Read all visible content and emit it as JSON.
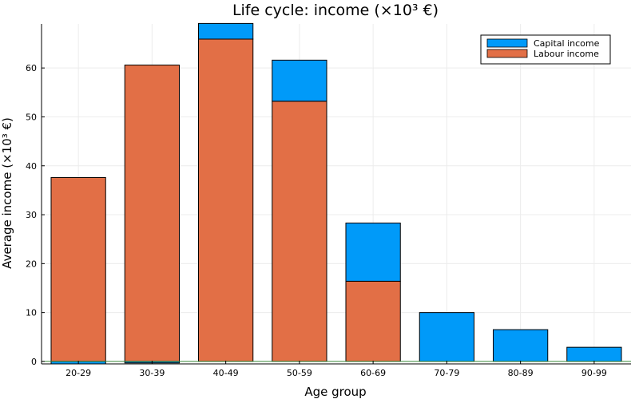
{
  "chart_data": {
    "type": "bar",
    "stacked": true,
    "title": "Life cycle: income (×10³ €)",
    "xlabel": "Age group",
    "ylabel": "Average income (×10³ €)",
    "ylim": [
      -0.5,
      69
    ],
    "yticks": [
      0,
      10,
      20,
      30,
      40,
      50,
      60
    ],
    "categories": [
      "20-29",
      "30-39",
      "40-49",
      "50-59",
      "60-69",
      "70-79",
      "80-89",
      "90-99"
    ],
    "series": [
      {
        "name": "Capital income",
        "color": "#009af9",
        "values": [
          -0.5,
          -0.3,
          3.2,
          8.4,
          11.9,
          10.0,
          6.5,
          2.9
        ]
      },
      {
        "name": "Labour income",
        "color": "#e26f46",
        "values": [
          37.6,
          60.6,
          65.9,
          53.2,
          16.4,
          0,
          0,
          0
        ]
      }
    ],
    "grid": true,
    "legend_position": "top-right",
    "zero_line_color": "#3a8a3a"
  }
}
